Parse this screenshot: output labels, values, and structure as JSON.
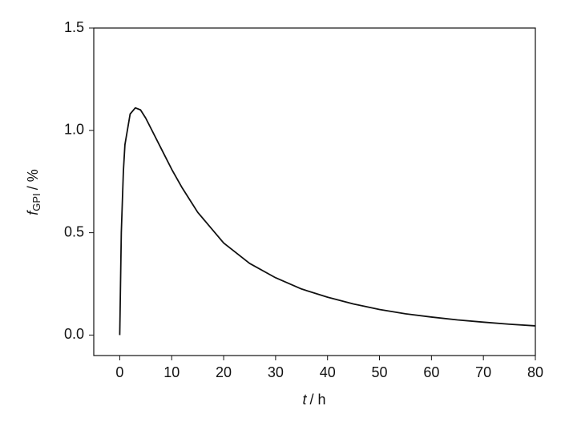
{
  "chart_data": {
    "type": "line",
    "xlabel": {
      "main": "t",
      "unit": "/ h"
    },
    "ylabel": {
      "main": "f",
      "sub": "GPI",
      "unit": "/ %"
    },
    "x": [
      0,
      0.3,
      0.7,
      1,
      2,
      3,
      4,
      5,
      6,
      8,
      10,
      12,
      15,
      20,
      25,
      30,
      35,
      40,
      45,
      50,
      55,
      60,
      65,
      70,
      75,
      80
    ],
    "series": [
      {
        "color": "#111111",
        "values": [
          0,
          0.5,
          0.8,
          0.93,
          1.08,
          1.11,
          1.1,
          1.06,
          1.01,
          0.91,
          0.81,
          0.72,
          0.6,
          0.45,
          0.35,
          0.28,
          0.225,
          0.185,
          0.152,
          0.125,
          0.104,
          0.088,
          0.074,
          0.063,
          0.053,
          0.045
        ]
      }
    ],
    "xlim": [
      -5,
      80
    ],
    "xticks": [
      0,
      10,
      20,
      30,
      40,
      50,
      60,
      70,
      80
    ],
    "ylim": [
      -0.1,
      1.5
    ],
    "yticks": [
      {
        "value": 0,
        "label": "0.0"
      },
      0.5,
      {
        "value": 1,
        "label": "1.0"
      },
      {
        "value": 1.5,
        "label": "1.5"
      }
    ]
  }
}
